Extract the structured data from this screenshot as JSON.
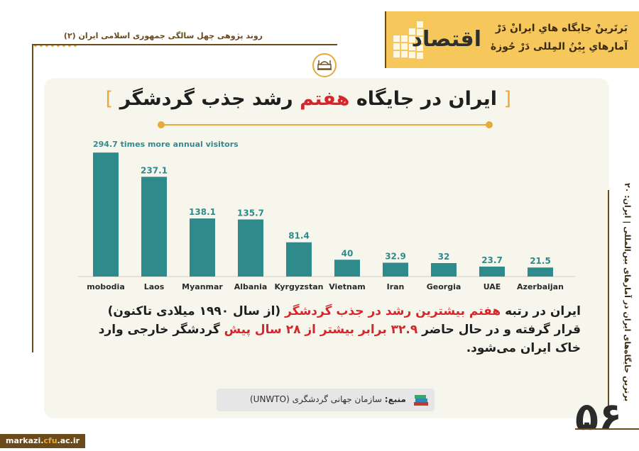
{
  "header": {
    "series_label": "روند پژوهی چهل سالگی جمهوری اسلامی ایران (۲)",
    "banner_word": "اقتصاد",
    "banner_line1": "بَرتَرینْ جایگاه هایِ ایرانْ دَرْ",
    "banner_line2": "آمارهایِ بِیْنُ المِللی دَرْ حُوزهٔ"
  },
  "title": {
    "bracket_open": "[",
    "prefix": "ایران در جایگاه",
    "highlight": "هفتم",
    "suffix": "رشد جذب گردشگر",
    "bracket_close": "]"
  },
  "colors": {
    "bar": "#2f8a8c",
    "accent": "#e7a93a",
    "highlight": "#d7262b",
    "brown": "#6b4a1c"
  },
  "chart_data": {
    "type": "bar",
    "title": "294.7 times more annual visitors",
    "categories": [
      "mobodia",
      "Laos",
      "Myanmar",
      "Albania",
      "Kyrgyzstan",
      "Vietnam",
      "Iran",
      "Georgia",
      "UAE",
      "Azerbaijan"
    ],
    "values": [
      294.7,
      237.1,
      138.1,
      135.7,
      81.4,
      40,
      32.9,
      32,
      23.7,
      21.5
    ],
    "value_labels": [
      "",
      "237.1",
      "138.1",
      "135.7",
      "81.4",
      "40",
      "32.9",
      "32",
      "23.7",
      "21.5"
    ],
    "xlabel": "",
    "ylabel": "",
    "ylim": [
      0,
      300
    ],
    "grid": false,
    "legend": "none"
  },
  "description": {
    "p1": "ایران در رتبه",
    "r1": "هفتم بیشترین رشد در جذب گردشگر",
    "p2": "(از سال ۱۹۹۰ میلادی تاکنون) قرار گرفته و در حال حاضر",
    "r2": "۳۲.۹ برابر بیشتر از ۲۸ سال پیش",
    "p3": "گردشگر خارجی وارد خاک ایران می‌شود."
  },
  "source": {
    "label": "منبع:",
    "text": "سازمان جهانی گردشگری (UNWTO)"
  },
  "side_caption": "برترین جایگاه‌های ایران در آمارهای بین‌المللی | ایران: ۲۰",
  "page_number": "۵۶",
  "footer": {
    "site_prefix": "markazi.",
    "site_accent": "cfu",
    "site_suffix": ".ac.ir"
  },
  "icons": [
    "emblem-icon",
    "books-icon"
  ]
}
